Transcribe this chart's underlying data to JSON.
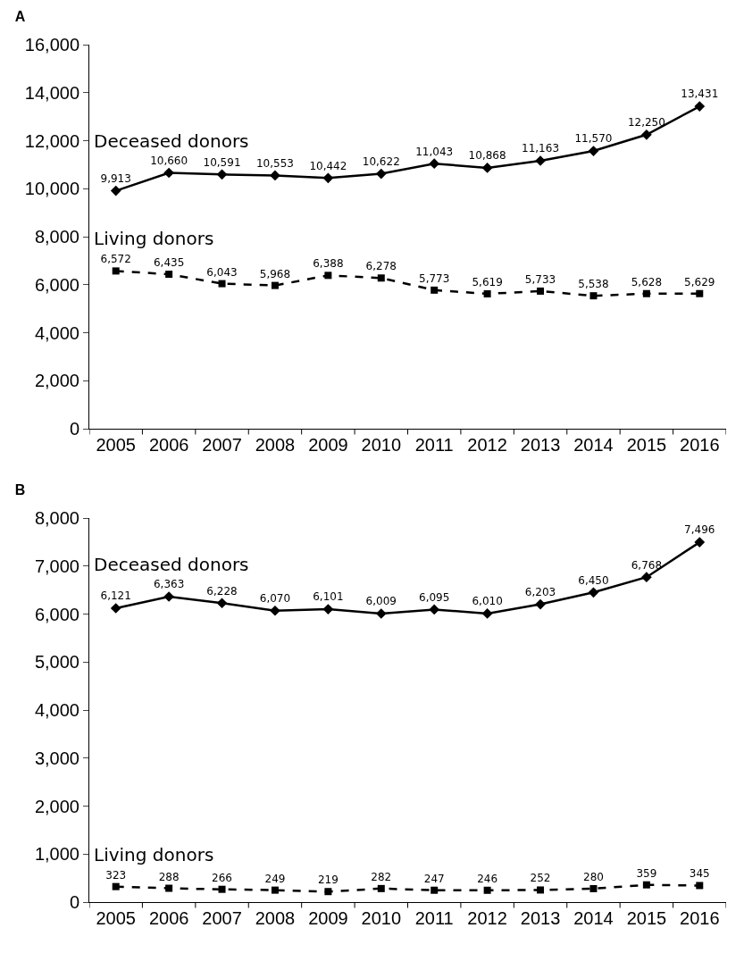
{
  "chart_data": [
    {
      "type": "line",
      "title": "A",
      "categories": [
        "2005",
        "2006",
        "2007",
        "2008",
        "2009",
        "2010",
        "2011",
        "2012",
        "2013",
        "2014",
        "2015",
        "2016"
      ],
      "series": [
        {
          "name": "Deceased donors",
          "color": "#000000",
          "marker": "diamond",
          "line_style": "solid",
          "values": [
            9913,
            10660,
            10591,
            10553,
            10442,
            10622,
            11043,
            10868,
            11163,
            11570,
            12250,
            13431
          ],
          "value_labels": [
            "9,913",
            "10,660",
            "10,591",
            "10,553",
            "10,442",
            "10,622",
            "11,043",
            "10,868",
            "11,163",
            "11,570",
            "12,250",
            "13,431"
          ]
        },
        {
          "name": "Living donors",
          "color": "#000000",
          "marker": "square",
          "line_style": "dashed",
          "values": [
            6572,
            6435,
            6043,
            5968,
            6388,
            6278,
            5773,
            5619,
            5733,
            5538,
            5628,
            5629
          ],
          "value_labels": [
            "6,572",
            "6,435",
            "6,043",
            "5,968",
            "6,388",
            "6,278",
            "5,773",
            "5,619",
            "5,733",
            "5,538",
            "5,628",
            "5,629"
          ]
        }
      ],
      "ylim": [
        0,
        16000
      ],
      "yticks": [
        0,
        {
          "value": 2000,
          "label": "2,000"
        },
        {
          "value": 4000,
          "label": "4,000"
        },
        {
          "value": 6000,
          "label": "6,000"
        },
        {
          "value": 8000,
          "label": "8,000"
        },
        {
          "value": 10000,
          "label": "10,000"
        },
        {
          "value": 12000,
          "label": "12,000"
        },
        {
          "value": 14000,
          "label": "14,000"
        },
        {
          "value": 16000,
          "label": "16,000"
        }
      ],
      "grid": false,
      "legend": false,
      "data_labels": true
    },
    {
      "type": "line",
      "title": "B",
      "categories": [
        "2005",
        "2006",
        "2007",
        "2008",
        "2009",
        "2010",
        "2011",
        "2012",
        "2013",
        "2014",
        "2015",
        "2016"
      ],
      "series": [
        {
          "name": "Deceased donors",
          "color": "#000000",
          "marker": "diamond",
          "line_style": "solid",
          "values": [
            6121,
            6363,
            6228,
            6070,
            6101,
            6009,
            6095,
            6010,
            6203,
            6450,
            6768,
            7496
          ],
          "value_labels": [
            "6,121",
            "6,363",
            "6,228",
            "6,070",
            "6,101",
            "6,009",
            "6,095",
            "6,010",
            "6,203",
            "6,450",
            "6,768",
            "7,496"
          ]
        },
        {
          "name": "Living donors",
          "color": "#000000",
          "marker": "square",
          "line_style": "dashed",
          "values": [
            323,
            288,
            266,
            249,
            219,
            282,
            247,
            246,
            252,
            280,
            359,
            345
          ],
          "value_labels": [
            "323",
            "288",
            "266",
            "249",
            "219",
            "282",
            "247",
            "246",
            "252",
            "280",
            "359",
            "345"
          ]
        }
      ],
      "ylim": [
        0,
        8000
      ],
      "yticks": [
        0,
        {
          "value": 1000,
          "label": "1,000"
        },
        {
          "value": 2000,
          "label": "2,000"
        },
        {
          "value": 3000,
          "label": "3,000"
        },
        {
          "value": 4000,
          "label": "4,000"
        },
        {
          "value": 5000,
          "label": "5,000"
        },
        {
          "value": 6000,
          "label": "6,000"
        },
        {
          "value": 7000,
          "label": "7,000"
        },
        {
          "value": 8000,
          "label": "8,000"
        }
      ],
      "grid": false,
      "legend": false,
      "data_labels": true
    }
  ]
}
